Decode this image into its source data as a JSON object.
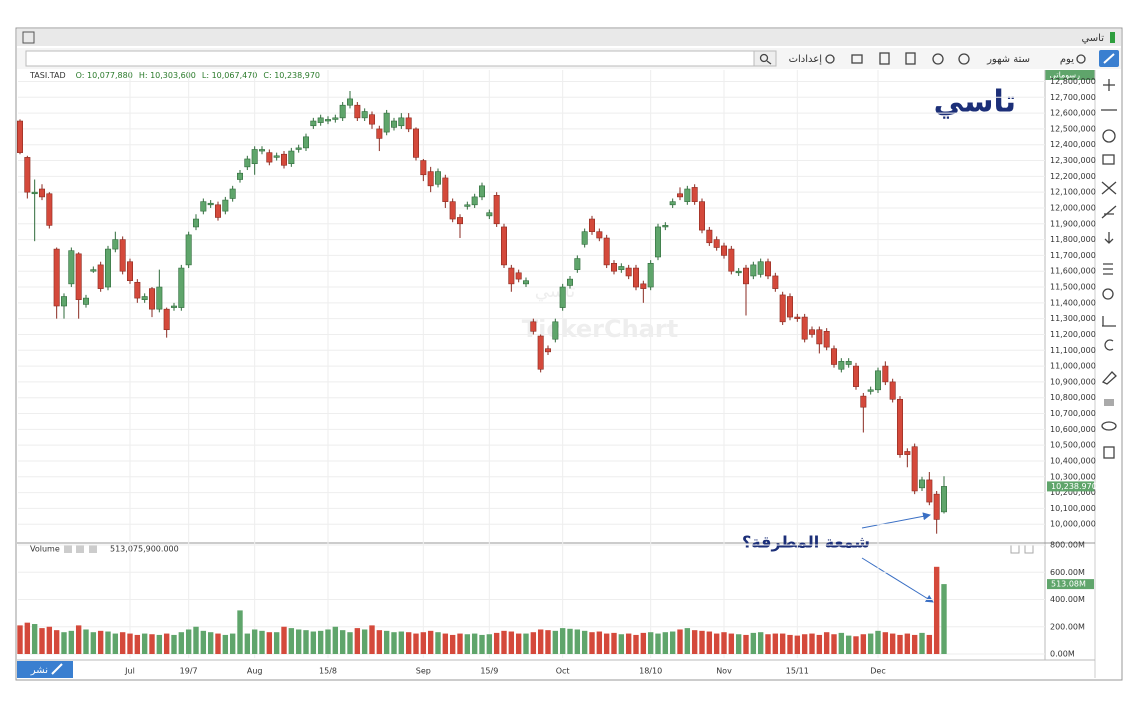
{
  "window": {
    "title": "تاسي",
    "toolbar": {
      "interval": "يوم",
      "range": "ستة شهور",
      "settings": "إعدادات"
    },
    "drawings_tab": "رسوماتي",
    "publish": "نشر"
  },
  "chart_data": {
    "type": "candlestick",
    "title": "تاسي",
    "watermark": "TickerChart",
    "watermark_sub": "تاسي",
    "symbol": "TASI.TAD",
    "ohlc_labels": [
      "O: 10,077,880",
      "H: 10,303,600",
      "L: 10,067,470",
      "C: 10,238,970"
    ],
    "annotation": "شمعة المطرقة؟",
    "price_tag": "10,238.970",
    "up_color": "#5fa56b",
    "down_color": "#d4493b",
    "categories": [
      null,
      null,
      null,
      null,
      null,
      null,
      null,
      null,
      null,
      null,
      null,
      null,
      null,
      null,
      null,
      "Jul",
      null,
      null,
      null,
      null,
      null,
      null,
      null,
      "19/7",
      null,
      null,
      null,
      null,
      null,
      null,
      null,
      null,
      "Aug",
      null,
      null,
      null,
      null,
      null,
      null,
      null,
      null,
      null,
      "15/8",
      null,
      null,
      null,
      null,
      null,
      null,
      null,
      null,
      null,
      null,
      null,
      null,
      "Sep",
      null,
      null,
      null,
      null,
      null,
      null,
      null,
      null,
      "15/9",
      null,
      null,
      null,
      null,
      null,
      null,
      null,
      null,
      null,
      "Oct",
      null,
      null,
      null,
      null,
      null,
      null,
      null,
      null,
      null,
      null,
      null,
      "18/10",
      null,
      null,
      null,
      null,
      null,
      null,
      null,
      null,
      null,
      "Nov",
      null,
      null,
      null,
      null,
      null,
      null,
      null,
      null,
      null,
      "15/11",
      null,
      null,
      null,
      null,
      null,
      null,
      null,
      null,
      null,
      null,
      "Dec",
      null,
      null,
      null,
      null,
      null,
      null,
      null,
      null,
      null
    ],
    "candles": [
      [
        12550000,
        12560000,
        12340000,
        12350000
      ],
      [
        12320000,
        12330000,
        12060000,
        12100000
      ],
      [
        12090000,
        12180000,
        11790000,
        12100000
      ],
      [
        12120000,
        12150000,
        12050000,
        12070000
      ],
      [
        12090000,
        12100000,
        11870000,
        11890000
      ],
      [
        11740000,
        11750000,
        11300000,
        11380000
      ],
      [
        11380000,
        11460000,
        11300000,
        11440000
      ],
      [
        11520000,
        11750000,
        11500000,
        11730000
      ],
      [
        11710000,
        11720000,
        11300000,
        11420000
      ],
      [
        11390000,
        11450000,
        11370000,
        11430000
      ],
      [
        11600000,
        11630000,
        11590000,
        11610000
      ],
      [
        11640000,
        11660000,
        11470000,
        11490000
      ],
      [
        11500000,
        11760000,
        11480000,
        11740000
      ],
      [
        11740000,
        11850000,
        11720000,
        11800000
      ],
      [
        11800000,
        11820000,
        11580000,
        11600000
      ],
      [
        11660000,
        11680000,
        11520000,
        11540000
      ],
      [
        11530000,
        11550000,
        11400000,
        11430000
      ],
      [
        11420000,
        11460000,
        11400000,
        11440000
      ],
      [
        11490000,
        11500000,
        11310000,
        11360000
      ],
      [
        11360000,
        11610000,
        11340000,
        11500000
      ],
      [
        11360000,
        11370000,
        11180000,
        11230000
      ],
      [
        11370000,
        11400000,
        11350000,
        11380000
      ],
      [
        11370000,
        11640000,
        11350000,
        11620000
      ],
      [
        11640000,
        11850000,
        11620000,
        11830000
      ],
      [
        11880000,
        11960000,
        11860000,
        11930000
      ],
      [
        11980000,
        12060000,
        11960000,
        12040000
      ],
      [
        12020000,
        12050000,
        12000000,
        12030000
      ],
      [
        12020000,
        12040000,
        11920000,
        11940000
      ],
      [
        11980000,
        12070000,
        11960000,
        12050000
      ],
      [
        12060000,
        12140000,
        12040000,
        12120000
      ],
      [
        12180000,
        12240000,
        12160000,
        12220000
      ],
      [
        12260000,
        12330000,
        12240000,
        12310000
      ],
      [
        12280000,
        12390000,
        12210000,
        12370000
      ],
      [
        12360000,
        12390000,
        12340000,
        12370000
      ],
      [
        12350000,
        12370000,
        12270000,
        12290000
      ],
      [
        12320000,
        12350000,
        12300000,
        12330000
      ],
      [
        12340000,
        12360000,
        12250000,
        12270000
      ],
      [
        12280000,
        12380000,
        12260000,
        12360000
      ],
      [
        12370000,
        12400000,
        12350000,
        12380000
      ],
      [
        12380000,
        12470000,
        12360000,
        12450000
      ],
      [
        12520000,
        12570000,
        12500000,
        12550000
      ],
      [
        12540000,
        12590000,
        12520000,
        12570000
      ],
      [
        12550000,
        12580000,
        12530000,
        12560000
      ],
      [
        12560000,
        12590000,
        12540000,
        12570000
      ],
      [
        12570000,
        12670000,
        12550000,
        12650000
      ],
      [
        12650000,
        12740000,
        12630000,
        12690000
      ],
      [
        12650000,
        12670000,
        12550000,
        12570000
      ],
      [
        12570000,
        12630000,
        12550000,
        12610000
      ],
      [
        12590000,
        12610000,
        12500000,
        12530000
      ],
      [
        12500000,
        12520000,
        12360000,
        12440000
      ],
      [
        12480000,
        12620000,
        12460000,
        12600000
      ],
      [
        12510000,
        12570000,
        12490000,
        12550000
      ],
      [
        12520000,
        12600000,
        12500000,
        12570000
      ],
      [
        12570000,
        12600000,
        12480000,
        12500000
      ],
      [
        12500000,
        12510000,
        12300000,
        12320000
      ],
      [
        12300000,
        12310000,
        12170000,
        12210000
      ],
      [
        12230000,
        12260000,
        12100000,
        12140000
      ],
      [
        12150000,
        12250000,
        12130000,
        12230000
      ],
      [
        12190000,
        12210000,
        12000000,
        12040000
      ],
      [
        12040000,
        12060000,
        11910000,
        11930000
      ],
      [
        11940000,
        11960000,
        11810000,
        11900000
      ],
      [
        12010000,
        12040000,
        11990000,
        12020000
      ],
      [
        12020000,
        12090000,
        12000000,
        12070000
      ],
      [
        12070000,
        12160000,
        12050000,
        12140000
      ],
      [
        11950000,
        11990000,
        11930000,
        11970000
      ],
      [
        12080000,
        12100000,
        11880000,
        11900000
      ],
      [
        11880000,
        11900000,
        11620000,
        11640000
      ],
      [
        11620000,
        11640000,
        11470000,
        11520000
      ],
      [
        11590000,
        11610000,
        11530000,
        11550000
      ],
      [
        11520000,
        11560000,
        11500000,
        11540000
      ],
      [
        11280000,
        11300000,
        11200000,
        11220000
      ],
      [
        11190000,
        11200000,
        10960000,
        10980000
      ],
      [
        11110000,
        11130000,
        11070000,
        11090000
      ],
      [
        11170000,
        11300000,
        11150000,
        11280000
      ],
      [
        11370000,
        11520000,
        11350000,
        11500000
      ],
      [
        11510000,
        11570000,
        11490000,
        11550000
      ],
      [
        11610000,
        11700000,
        11590000,
        11680000
      ],
      [
        11770000,
        11870000,
        11750000,
        11850000
      ],
      [
        11930000,
        11950000,
        11830000,
        11850000
      ],
      [
        11850000,
        11870000,
        11790000,
        11810000
      ],
      [
        11810000,
        11830000,
        11620000,
        11640000
      ],
      [
        11650000,
        11670000,
        11580000,
        11600000
      ],
      [
        11610000,
        11650000,
        11590000,
        11630000
      ],
      [
        11620000,
        11640000,
        11550000,
        11570000
      ],
      [
        11620000,
        11640000,
        11480000,
        11500000
      ],
      [
        11520000,
        11540000,
        11400000,
        11490000
      ],
      [
        11500000,
        11670000,
        11480000,
        11650000
      ],
      [
        11690000,
        11900000,
        11670000,
        11880000
      ],
      [
        11880000,
        11910000,
        11860000,
        11890000
      ],
      [
        12020000,
        12060000,
        12000000,
        12040000
      ],
      [
        12090000,
        12130000,
        12050000,
        12070000
      ],
      [
        12040000,
        12140000,
        12020000,
        12120000
      ],
      [
        12130000,
        12150000,
        12020000,
        12040000
      ],
      [
        12040000,
        12060000,
        11840000,
        11860000
      ],
      [
        11860000,
        11880000,
        11760000,
        11780000
      ],
      [
        11800000,
        11820000,
        11730000,
        11750000
      ],
      [
        11760000,
        11780000,
        11680000,
        11700000
      ],
      [
        11740000,
        11760000,
        11580000,
        11600000
      ],
      [
        11590000,
        11620000,
        11570000,
        11600000
      ],
      [
        11620000,
        11640000,
        11320000,
        11520000
      ],
      [
        11570000,
        11660000,
        11550000,
        11640000
      ],
      [
        11580000,
        11680000,
        11560000,
        11660000
      ],
      [
        11660000,
        11680000,
        11550000,
        11570000
      ],
      [
        11570000,
        11590000,
        11470000,
        11490000
      ],
      [
        11450000,
        11470000,
        11260000,
        11280000
      ],
      [
        11440000,
        11460000,
        11290000,
        11310000
      ],
      [
        11310000,
        11330000,
        11280000,
        11300000
      ],
      [
        11310000,
        11330000,
        11150000,
        11170000
      ],
      [
        11230000,
        11250000,
        11180000,
        11200000
      ],
      [
        11230000,
        11250000,
        11080000,
        11140000
      ],
      [
        11220000,
        11240000,
        11100000,
        11120000
      ],
      [
        11110000,
        11130000,
        10990000,
        11010000
      ],
      [
        10980000,
        11050000,
        10960000,
        11030000
      ],
      [
        11010000,
        11050000,
        10990000,
        11030000
      ],
      [
        11000000,
        11020000,
        10850000,
        10870000
      ],
      [
        10810000,
        10830000,
        10580000,
        10740000
      ],
      [
        10840000,
        10870000,
        10820000,
        10850000
      ],
      [
        10850000,
        10990000,
        10830000,
        10970000
      ],
      [
        11000000,
        11030000,
        10880000,
        10900000
      ],
      [
        10900000,
        10920000,
        10770000,
        10790000
      ],
      [
        10790000,
        10810000,
        10420000,
        10440000
      ],
      [
        10460000,
        10480000,
        10360000,
        10440000
      ],
      [
        10490000,
        10510000,
        10190000,
        10210000
      ],
      [
        10230000,
        10300000,
        10210000,
        10280000
      ],
      [
        10280000,
        10330000,
        10120000,
        10140000
      ],
      [
        10190000,
        10210000,
        9940000,
        10030000
      ],
      [
        10077880,
        10303600,
        10067470,
        10238970
      ]
    ],
    "ylim": [
      9900000,
      12860000
    ],
    "yticks": [
      {
        "value": 10000000,
        "label": "10,000,000"
      },
      {
        "value": 10100000,
        "label": "10,100,000"
      },
      {
        "value": 10200000,
        "label": "10,200,000"
      },
      {
        "value": 10300000,
        "label": "10,300,000"
      },
      {
        "value": 10400000,
        "label": "10,400,000"
      },
      {
        "value": 10500000,
        "label": "10,500,000"
      },
      {
        "value": 10600000,
        "label": "10,600,000"
      },
      {
        "value": 10700000,
        "label": "10,700,000"
      },
      {
        "value": 10800000,
        "label": "10,800,000"
      },
      {
        "value": 10900000,
        "label": "10,900,000"
      },
      {
        "value": 11000000,
        "label": "11,000,000"
      },
      {
        "value": 11100000,
        "label": "11,100,000"
      },
      {
        "value": 11200000,
        "label": "11,200,000"
      },
      {
        "value": 11300000,
        "label": "11,300,000"
      },
      {
        "value": 11400000,
        "label": "11,400,000"
      },
      {
        "value": 11500000,
        "label": "11,500,000"
      },
      {
        "value": 11600000,
        "label": "11,600,000"
      },
      {
        "value": 11700000,
        "label": "11,700,000"
      },
      {
        "value": 11800000,
        "label": "11,800,000"
      },
      {
        "value": 11900000,
        "label": "11,900,000"
      },
      {
        "value": 12000000,
        "label": "12,000,000"
      },
      {
        "value": 12100000,
        "label": "12,100,000"
      },
      {
        "value": 12200000,
        "label": "12,200,000"
      },
      {
        "value": 12300000,
        "label": "12,300,000"
      },
      {
        "value": 12400000,
        "label": "12,400,000"
      },
      {
        "value": 12500000,
        "label": "12,500,000"
      },
      {
        "value": 12600000,
        "label": "12,600,000"
      },
      {
        "value": 12700000,
        "label": "12,700,000"
      },
      {
        "value": 12800000,
        "label": "12,800,000"
      }
    ],
    "grid": true,
    "volume": {
      "name": "Volume",
      "header_value": "513,075,900.000",
      "tag": "513.08M",
      "values": [
        210,
        230,
        220,
        190,
        200,
        175,
        160,
        170,
        210,
        180,
        160,
        170,
        165,
        150,
        160,
        150,
        140,
        150,
        145,
        140,
        150,
        140,
        160,
        180,
        200,
        170,
        160,
        150,
        140,
        150,
        320,
        150,
        180,
        170,
        160,
        160,
        200,
        190,
        180,
        175,
        165,
        170,
        180,
        200,
        175,
        160,
        190,
        180,
        210,
        175,
        170,
        160,
        165,
        160,
        150,
        160,
        170,
        160,
        150,
        140,
        150,
        145,
        150,
        140,
        145,
        155,
        170,
        165,
        150,
        150,
        160,
        180,
        175,
        170,
        190,
        185,
        180,
        170,
        160,
        165,
        150,
        155,
        145,
        150,
        140,
        155,
        160,
        150,
        160,
        165,
        180,
        190,
        175,
        170,
        165,
        150,
        160,
        150,
        145,
        140,
        155,
        160,
        145,
        150,
        150,
        140,
        135,
        145,
        150,
        140,
        160,
        145,
        155,
        135,
        130,
        145,
        150,
        170,
        160,
        150,
        140,
        150,
        140,
        155,
        140,
        640,
        513.08
      ],
      "ylim": [
        0,
        800
      ],
      "yticks": [
        {
          "value": 0,
          "label": "0.00M"
        },
        {
          "value": 200,
          "label": "200.00M"
        },
        {
          "value": 400,
          "label": "400.00M"
        },
        {
          "value": 600,
          "label": "600.00M"
        },
        {
          "value": 800,
          "label": "800.00M"
        }
      ]
    }
  }
}
